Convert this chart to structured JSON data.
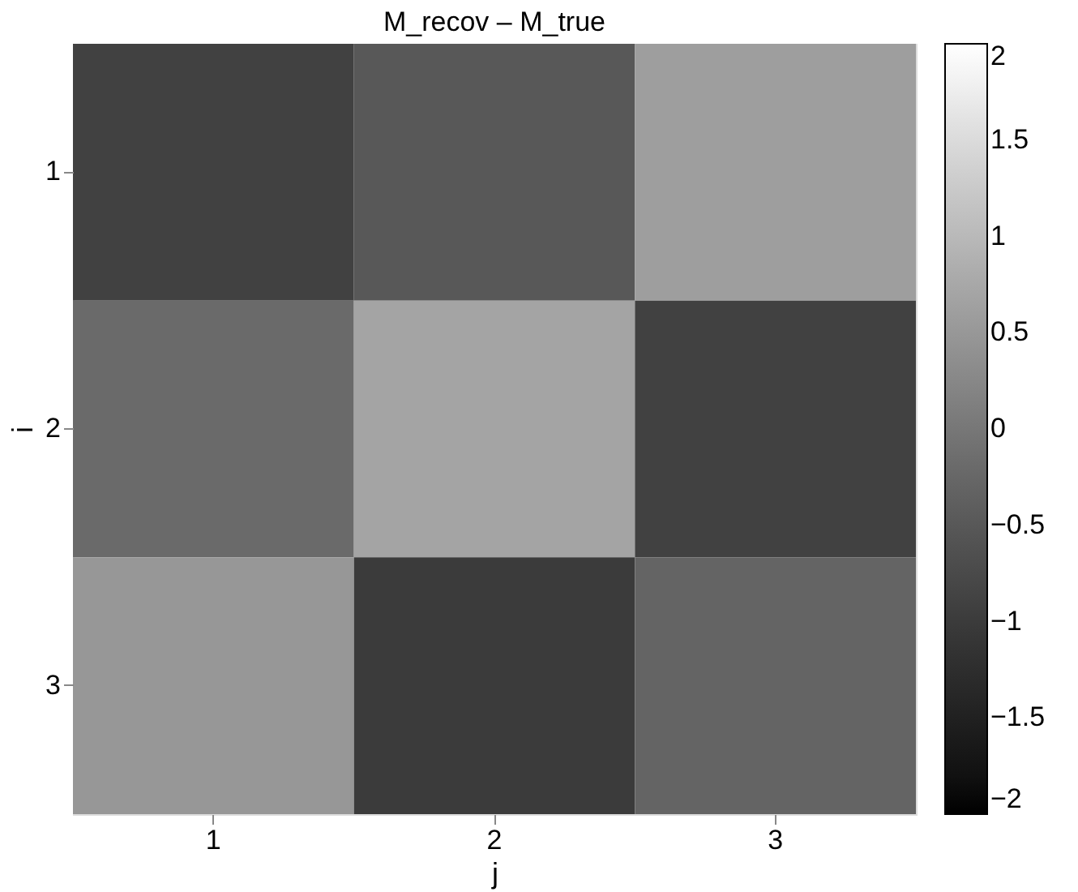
{
  "chart_data": {
    "type": "heatmap",
    "title": "M_recov – M_true",
    "xlabel": "j",
    "ylabel": "i",
    "categories": [
      "1",
      "2",
      "3"
    ],
    "y_categories": [
      "1",
      "2",
      "3"
    ],
    "cells": [
      [
        -0.9,
        -0.5,
        0.6
      ],
      [
        -0.2,
        0.7,
        -0.9
      ],
      [
        0.5,
        -1.0,
        -0.3
      ]
    ],
    "clim": [
      -2,
      2
    ],
    "cticks": [
      {
        "value": -2,
        "label": "−2"
      },
      {
        "value": -1.5,
        "label": "−1.5"
      },
      {
        "value": -1,
        "label": "−1"
      },
      {
        "value": -0.5,
        "label": "−0.5"
      },
      0,
      0.5,
      1,
      1.5,
      2
    ]
  }
}
